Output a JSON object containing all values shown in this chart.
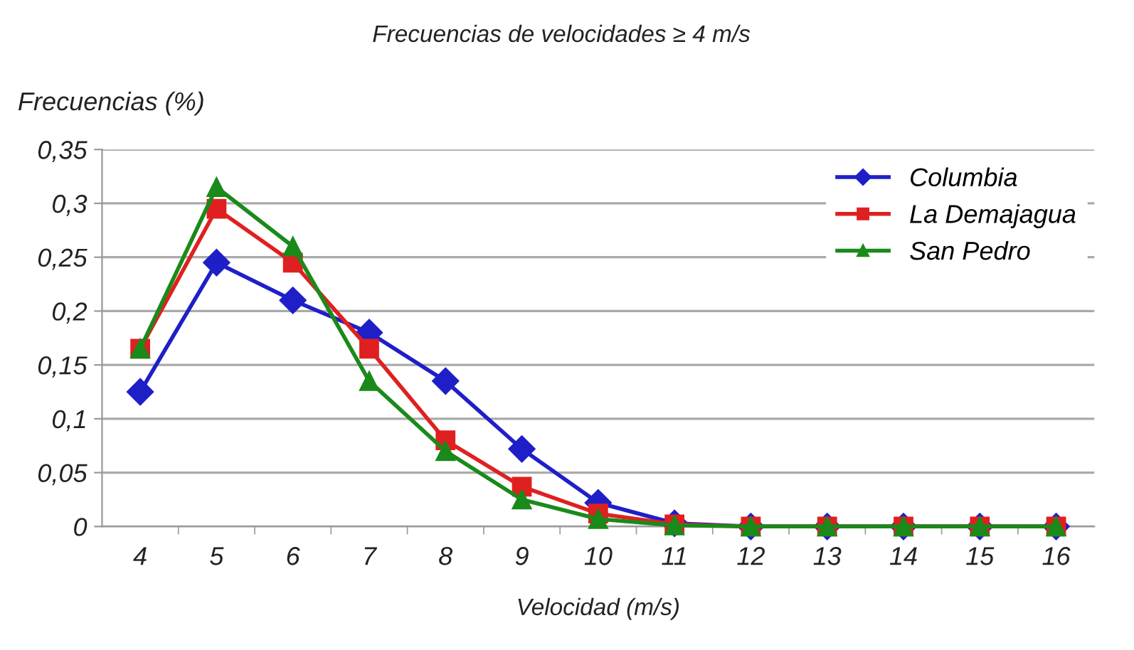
{
  "chart_data": {
    "type": "line",
    "title": "Frecuencias de velocidades ≥ 4 m/s",
    "xlabel": "Velocidad (m/s)",
    "ylabel": "Frecuencias (%)",
    "categories": [
      "4",
      "5",
      "6",
      "7",
      "8",
      "9",
      "10",
      "11",
      "12",
      "13",
      "14",
      "15",
      "16"
    ],
    "series": [
      {
        "name": "Columbia",
        "color": "#1f1fc8",
        "marker": "diamond",
        "values": [
          0.125,
          0.245,
          0.21,
          0.18,
          0.135,
          0.072,
          0.022,
          0.003,
          0,
          0,
          0,
          0,
          0
        ]
      },
      {
        "name": "La Demajagua",
        "color": "#e02020",
        "marker": "square",
        "values": [
          0.165,
          0.295,
          0.245,
          0.165,
          0.08,
          0.037,
          0.012,
          0.002,
          0,
          0,
          0,
          0,
          0
        ]
      },
      {
        "name": "San Pedro",
        "color": "#1a8a1a",
        "marker": "triangle",
        "values": [
          0.165,
          0.315,
          0.26,
          0.135,
          0.07,
          0.025,
          0.007,
          0.001,
          0,
          0,
          0,
          0,
          0
        ]
      }
    ],
    "ylim": [
      0,
      0.35
    ],
    "yticks": [
      {
        "value": 0,
        "label": "0"
      },
      {
        "value": 0.05,
        "label": "0,05"
      },
      {
        "value": 0.1,
        "label": "0,1"
      },
      {
        "value": 0.15,
        "label": "0,15"
      },
      {
        "value": 0.2,
        "label": "0,2"
      },
      {
        "value": 0.25,
        "label": "0,25"
      },
      {
        "value": 0.3,
        "label": "0,3"
      },
      {
        "value": 0.35,
        "label": "0,35"
      }
    ],
    "grid": "y",
    "legend": "top right",
    "line_style": "solid"
  }
}
